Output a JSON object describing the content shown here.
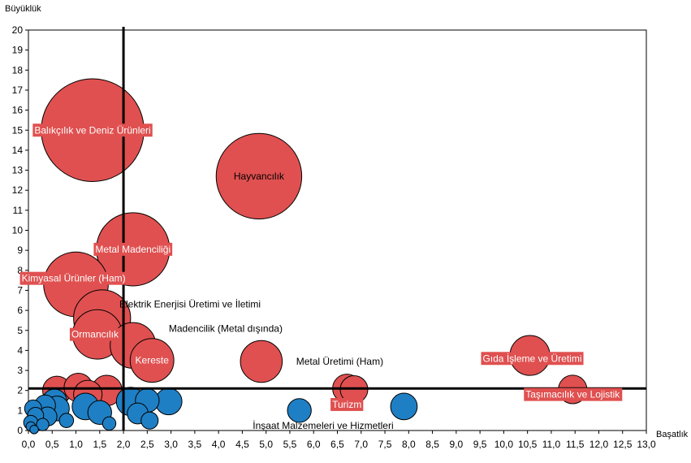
{
  "chart_data": {
    "type": "bubble",
    "xlabel": "Başatlık",
    "ylabel": "Büyüklük",
    "xlim": [
      0,
      13
    ],
    "ylim": [
      0,
      20
    ],
    "x_ticks": [
      "0,0",
      "0,5",
      "1,0",
      "1,5",
      "2,0",
      "2,5",
      "3,0",
      "3,5",
      "4,0",
      "4,5",
      "5,0",
      "5,5",
      "6,0",
      "6,5",
      "7,0",
      "7,5",
      "8,0",
      "8,5",
      "9,0",
      "9,5",
      "10,0",
      "10,5",
      "11,0",
      "11,5",
      "12,0",
      "12,5",
      "13,0"
    ],
    "y_ticks": [
      "0",
      "1",
      "2",
      "3",
      "4",
      "5",
      "6",
      "7",
      "8",
      "9",
      "10",
      "11",
      "12",
      "13",
      "14",
      "15",
      "16",
      "17",
      "18",
      "19",
      "20"
    ],
    "reference_lines": {
      "x": 2.0,
      "y": 2.1
    },
    "colors": {
      "highlight": "#e05050",
      "other": "#1f7fc4",
      "outline": "#000000",
      "label_box": "#e05050"
    },
    "highlighted": [
      {
        "label": "Balıkçılık ve Deniz Ürünleri",
        "x": 1.35,
        "y": 15.0,
        "size": 10.8,
        "boxed": true,
        "label_dx": 0.0,
        "label_dy": 0.0
      },
      {
        "label": "Hayvancılık",
        "x": 4.85,
        "y": 12.7,
        "size": 9.0,
        "boxed": false,
        "label_dx": 0.0,
        "label_dy": 0.0
      },
      {
        "label": "Metal Madenciliği",
        "x": 2.2,
        "y": 9.05,
        "size": 7.7,
        "boxed": true,
        "label_dx": 0.0,
        "label_dy": 0.0
      },
      {
        "label": "Kimyasal Ürünler (Ham)",
        "x": 1.0,
        "y": 7.3,
        "size": 6.8,
        "boxed": true,
        "label_dx": -0.05,
        "label_dy": 0.3
      },
      {
        "label": "Elektrik Enerjisi Üretimi ve İletimi",
        "x": 1.55,
        "y": 5.6,
        "size": 6.0,
        "boxed": false,
        "label_dx": 1.85,
        "label_dy": 0.7
      },
      {
        "label": "Ormancılık",
        "x": 1.45,
        "y": 4.8,
        "size": 5.2,
        "boxed": true,
        "label_dx": -0.05,
        "label_dy": 0.0
      },
      {
        "label": "Madencilik (Metal dışında)",
        "x": 2.2,
        "y": 4.25,
        "size": 4.8,
        "boxed": false,
        "label_dx": 1.95,
        "label_dy": 0.85
      },
      {
        "label": "Kereste",
        "x": 2.6,
        "y": 3.5,
        "size": 4.6,
        "boxed": true,
        "label_dx": 0.0,
        "label_dy": 0.0
      },
      {
        "label": "Metal Üretimi (Ham)",
        "x": 4.9,
        "y": 3.45,
        "size": 4.4,
        "boxed": false,
        "label_dx": 1.65,
        "label_dy": 0.0
      },
      {
        "label": "Gıda İşleme ve Üretimi",
        "x": 10.55,
        "y": 3.75,
        "size": 4.2,
        "boxed": true,
        "label_dx": 0.05,
        "label_dy": -0.15
      },
      {
        "label": "Turizm",
        "x": 6.7,
        "y": 2.1,
        "size": 3.0,
        "boxed": true,
        "label_dx": 0.0,
        "label_dy": -0.8
      },
      {
        "label": "Taşımacılık ve Lojistik",
        "x": 11.45,
        "y": 2.05,
        "size": 3.0,
        "boxed": true,
        "label_dx": 0.0,
        "label_dy": -0.25
      },
      {
        "label": "",
        "x": 0.6,
        "y": 2.0,
        "size": 3.0,
        "boxed": false,
        "label_dx": 0,
        "label_dy": 0
      },
      {
        "label": "",
        "x": 1.05,
        "y": 2.15,
        "size": 3.0,
        "boxed": false,
        "label_dx": 0,
        "label_dy": 0
      },
      {
        "label": "",
        "x": 1.25,
        "y": 1.8,
        "size": 3.0,
        "boxed": false,
        "label_dx": 0,
        "label_dy": 0
      },
      {
        "label": "",
        "x": 1.65,
        "y": 2.0,
        "size": 3.2,
        "boxed": false,
        "label_dx": 0,
        "label_dy": 0
      },
      {
        "label": "",
        "x": 6.85,
        "y": 2.05,
        "size": 2.9,
        "boxed": false,
        "label_dx": 0,
        "label_dy": 0
      }
    ],
    "others": [
      {
        "label": "İnşaat Malzemeleri ve Hizmetleri",
        "x": 7.9,
        "y": 1.2,
        "size": 2.8,
        "label_dx": -1.7,
        "label_dy": -0.95
      },
      {
        "label": "",
        "x": 5.7,
        "y": 1.0,
        "size": 2.5
      },
      {
        "label": "",
        "x": 2.95,
        "y": 1.45,
        "size": 2.8
      },
      {
        "label": "",
        "x": 2.15,
        "y": 1.45,
        "size": 3.0
      },
      {
        "label": "",
        "x": 2.5,
        "y": 1.5,
        "size": 2.5
      },
      {
        "label": "",
        "x": 2.3,
        "y": 0.85,
        "size": 2.2
      },
      {
        "label": "",
        "x": 2.55,
        "y": 0.5,
        "size": 1.8
      },
      {
        "label": "",
        "x": 1.2,
        "y": 1.2,
        "size": 2.8
      },
      {
        "label": "",
        "x": 1.5,
        "y": 0.9,
        "size": 2.5
      },
      {
        "label": "",
        "x": 0.55,
        "y": 1.45,
        "size": 2.6
      },
      {
        "label": "",
        "x": 0.6,
        "y": 1.1,
        "size": 2.6
      },
      {
        "label": "",
        "x": 0.35,
        "y": 1.25,
        "size": 2.2
      },
      {
        "label": "",
        "x": 0.4,
        "y": 0.7,
        "size": 2.0
      },
      {
        "label": "",
        "x": 0.1,
        "y": 1.1,
        "size": 1.8
      },
      {
        "label": "",
        "x": 0.15,
        "y": 0.75,
        "size": 1.7
      },
      {
        "label": "",
        "x": 0.05,
        "y": 0.4,
        "size": 1.5
      },
      {
        "label": "",
        "x": 0.3,
        "y": 0.3,
        "size": 1.3
      },
      {
        "label": "",
        "x": 0.8,
        "y": 0.5,
        "size": 1.5
      },
      {
        "label": "",
        "x": 1.7,
        "y": 0.35,
        "size": 1.4
      },
      {
        "label": "",
        "x": 0.05,
        "y": 0.2,
        "size": 1.0
      },
      {
        "label": "",
        "x": 0.12,
        "y": 0.05,
        "size": 0.9
      }
    ]
  }
}
